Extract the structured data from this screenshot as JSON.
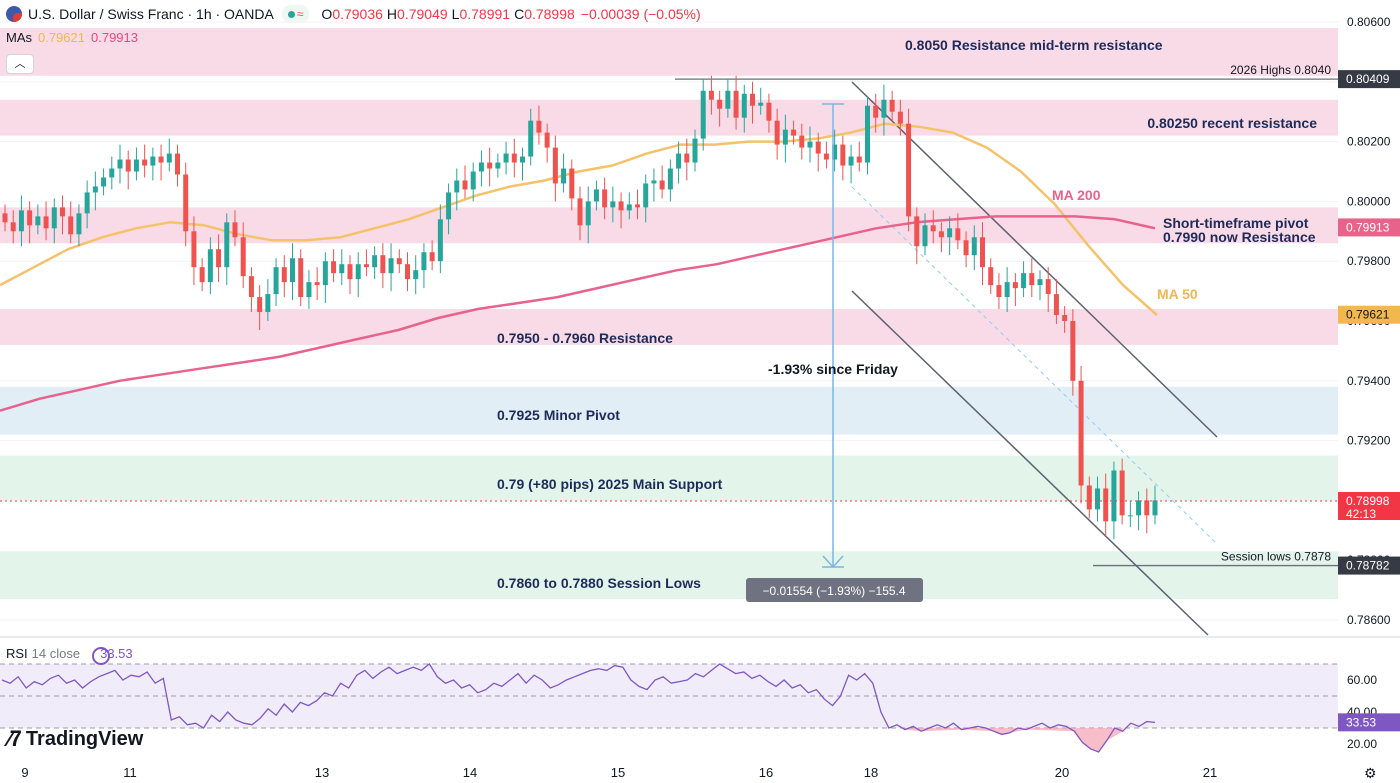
{
  "header": {
    "symbol": "U.S. Dollar / Swiss Franc · 1h · OANDA",
    "open_label": "O",
    "open": "0.79036",
    "high_label": "H",
    "high": "0.79049",
    "low_label": "L",
    "low": "0.78991",
    "close_label": "C",
    "close": "0.78998",
    "change": "−0.00039 (−0.05%)"
  },
  "mas": {
    "label": "MAs",
    "ma50": "0.79621",
    "ma200": "0.79913"
  },
  "collapse_icon": "chevron-up-icon",
  "chart_data": {
    "type": "line",
    "title": "U.S. Dollar / Swiss Franc · 1h · OANDA",
    "price_axis_ticks": [
      "0.80600",
      "0.80400",
      "0.80200",
      "0.80000",
      "0.79800",
      "0.79600",
      "0.79400",
      "0.79200",
      "0.79000",
      "0.78800",
      "0.78600"
    ],
    "time_axis_labels": [
      "9",
      "11",
      "13",
      "14",
      "15",
      "16",
      "18",
      "20",
      "21"
    ],
    "series": [
      {
        "name": "MA 50",
        "color": "#f5c26b",
        "values": [
          0.7972,
          0.7978,
          0.7984,
          0.7988,
          0.7991,
          0.7993,
          0.7992,
          0.7989,
          0.7987,
          0.7987,
          0.7988,
          0.7991,
          0.7994,
          0.7998,
          0.8002,
          0.8005,
          0.8007,
          0.801,
          0.8012,
          0.8016,
          0.8019,
          0.8019,
          0.802,
          0.802,
          0.8021,
          0.8023,
          0.8026,
          0.8025,
          0.8023,
          0.8018,
          0.801,
          0.7999,
          0.7985,
          0.7972,
          0.7962
        ]
      },
      {
        "name": "MA 200",
        "color": "#e8638c",
        "values": [
          0.793,
          0.7934,
          0.7937,
          0.794,
          0.7942,
          0.7944,
          0.7946,
          0.7948,
          0.7951,
          0.7954,
          0.7957,
          0.7961,
          0.7964,
          0.7966,
          0.7968,
          0.7971,
          0.7974,
          0.7977,
          0.7979,
          0.7982,
          0.7985,
          0.7988,
          0.7991,
          0.7993,
          0.7994,
          0.7995,
          0.7995,
          0.7995,
          0.7994,
          0.7991
        ]
      }
    ],
    "zones": [
      {
        "label": "0.8050 Resistance mid-term resistance",
        "from": 0.8042,
        "to": 0.8058,
        "color": "#f8dbe6"
      },
      {
        "label": "0.80250 recent resistance",
        "from": 0.8022,
        "to": 0.8034,
        "color": "#f8dbe6"
      },
      {
        "label": "Short-timeframe pivot 0.7990 now Resistance",
        "from": 0.7986,
        "to": 0.7998,
        "color": "#f8dbe6"
      },
      {
        "label": "0.7950 - 0.7960 Resistance",
        "from": 0.7952,
        "to": 0.7964,
        "color": "#f8dbe6"
      },
      {
        "label": "0.7925 Minor Pivot",
        "from": 0.7922,
        "to": 0.7938,
        "color": "#e2eef6"
      },
      {
        "label": "0.79 (+80 pips) 2025 Main Support",
        "from": 0.79,
        "to": 0.7915,
        "color": "#e3f4ea"
      },
      {
        "label": "0.7860 to 0.7880 Session Lows",
        "from": 0.7867,
        "to": 0.7883,
        "color": "#e3f4ea"
      }
    ],
    "levels": [
      {
        "label": "2026 Highs 0.8040",
        "value": 0.80409
      },
      {
        "label": "Session lows 0.7878",
        "value": 0.78782
      }
    ],
    "price_badges": [
      {
        "value": "0.80409",
        "kind": "dark"
      },
      {
        "value": "0.79913",
        "kind": "ma200"
      },
      {
        "value": "0.79621",
        "kind": "ma50"
      },
      {
        "value": "0.78998",
        "sub": "42:13",
        "kind": "last"
      },
      {
        "value": "0.78782",
        "kind": "dark"
      }
    ],
    "annotations": {
      "ma200": "MA 200",
      "ma50": "MA 50",
      "drop_text": "-1.93% since Friday",
      "measure": "−0.01554 (−1.93%) −155.4"
    },
    "candles_close": [
      0.7993,
      0.799,
      0.7997,
      0.7992,
      0.7995,
      0.7991,
      0.7998,
      0.7995,
      0.7989,
      0.7996,
      0.8003,
      0.8005,
      0.8008,
      0.8011,
      0.8014,
      0.801,
      0.8014,
      0.8012,
      0.8015,
      0.8013,
      0.8016,
      0.8009,
      0.799,
      0.7978,
      0.7973,
      0.7984,
      0.7978,
      0.7993,
      0.7988,
      0.7975,
      0.7968,
      0.7963,
      0.7969,
      0.7978,
      0.7973,
      0.7981,
      0.7968,
      0.7973,
      0.7972,
      0.798,
      0.7976,
      0.7979,
      0.7974,
      0.7979,
      0.7978,
      0.7982,
      0.7976,
      0.7981,
      0.7979,
      0.7974,
      0.7977,
      0.7983,
      0.798,
      0.7994,
      0.8003,
      0.8007,
      0.8004,
      0.801,
      0.8013,
      0.8011,
      0.8013,
      0.8016,
      0.8013,
      0.8015,
      0.8027,
      0.8023,
      0.8018,
      0.8006,
      0.8011,
      0.8001,
      0.7992,
      0.8,
      0.8004,
      0.7998,
      0.8,
      0.7997,
      0.7999,
      0.7998,
      0.8006,
      0.8007,
      0.8004,
      0.8011,
      0.8016,
      0.8013,
      0.8021,
      0.8037,
      0.8034,
      0.8031,
      0.8037,
      0.8028,
      0.8036,
      0.8032,
      0.8033,
      0.8027,
      0.8019,
      0.8024,
      0.8022,
      0.8018,
      0.802,
      0.8016,
      0.8014,
      0.8019,
      0.8012,
      0.8015,
      0.8013,
      0.8032,
      0.8028,
      0.8034,
      0.803,
      0.8026,
      0.7995,
      0.7985,
      0.7992,
      0.799,
      0.7988,
      0.7991,
      0.7987,
      0.7982,
      0.7988,
      0.7978,
      0.7972,
      0.7968,
      0.7973,
      0.7971,
      0.7976,
      0.7972,
      0.7974,
      0.7969,
      0.7962,
      0.796,
      0.794,
      0.7905,
      0.7897,
      0.7904,
      0.7893,
      0.791,
      0.7895,
      0.7895,
      0.79,
      0.7895,
      0.79
    ]
  },
  "rsi": {
    "label": "RSI",
    "params": "14 close",
    "value": "33.53",
    "ticks": [
      "60.00",
      "40.00",
      "20.00"
    ],
    "upper": 70,
    "lower": 30,
    "values": [
      60,
      58,
      62,
      55,
      59,
      57,
      61,
      63,
      58,
      60,
      55,
      59,
      62,
      64,
      66,
      60,
      63,
      62,
      65,
      58,
      61,
      35,
      37,
      32,
      33,
      30,
      38,
      34,
      40,
      35,
      33,
      32,
      36,
      42,
      38,
      45,
      40,
      46,
      44,
      47,
      52,
      50,
      58,
      55,
      63,
      66,
      61,
      65,
      68,
      64,
      66,
      68,
      66,
      70,
      62,
      58,
      60,
      55,
      57,
      52,
      54,
      58,
      56,
      60,
      64,
      58,
      63,
      60,
      55,
      57,
      60,
      62,
      64,
      66,
      67,
      66,
      69,
      68,
      60,
      56,
      54,
      60,
      62,
      58,
      59,
      60,
      64,
      62,
      66,
      70,
      67,
      64,
      65,
      61,
      63,
      59,
      56,
      60,
      55,
      57,
      52,
      54,
      48,
      44,
      50,
      63,
      60,
      64,
      58,
      40,
      30,
      32,
      29,
      31,
      28,
      30,
      32,
      30,
      33,
      29,
      30,
      31,
      30,
      28,
      26,
      27,
      30,
      29,
      31,
      33,
      30,
      32,
      31,
      28,
      21,
      17,
      15,
      22,
      30,
      28,
      33,
      31,
      34,
      33.5
    ]
  },
  "logo": "TradingView",
  "settings_icon": "gear-icon"
}
